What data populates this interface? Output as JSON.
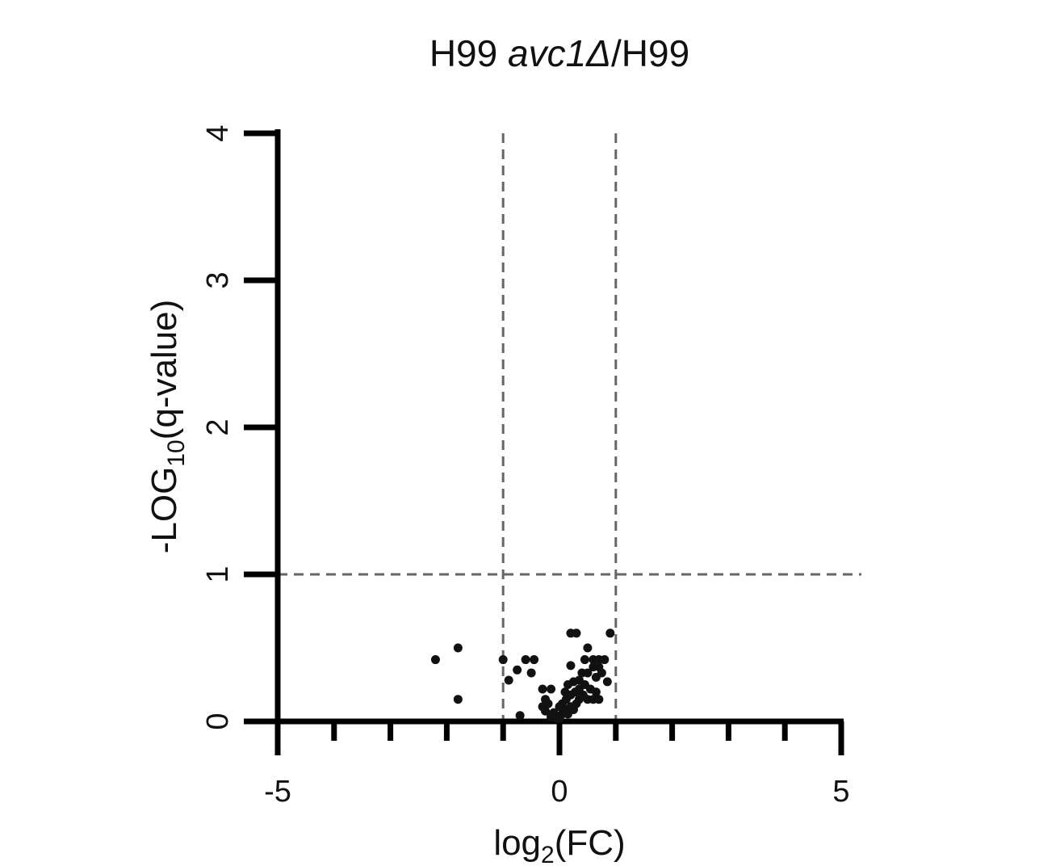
{
  "chart_data": {
    "type": "scatter",
    "title_prefix": "H99 ",
    "title_italic": "avc1Δ",
    "title_suffix": "/H99",
    "xlabel_main": "log",
    "xlabel_sub": "2",
    "xlabel_tail": "(FC)",
    "ylabel_pre": "-LOG",
    "ylabel_sub": "10",
    "ylabel_tail": "(q-value)",
    "xlim": [
      -5,
      5
    ],
    "ylim": [
      0,
      4
    ],
    "x_ticks": [
      -5,
      -4,
      -3,
      -2,
      -1,
      0,
      1,
      2,
      3,
      4,
      5
    ],
    "x_tick_labels": [
      {
        "value": -5,
        "label": "-5"
      },
      {
        "value": 0,
        "label": "0"
      },
      {
        "value": 5,
        "label": "5"
      }
    ],
    "y_ticks": [
      0,
      1,
      2,
      3,
      4
    ],
    "y_tick_labels": [
      {
        "value": 0,
        "label": "0"
      },
      {
        "value": 1,
        "label": "1"
      },
      {
        "value": 2,
        "label": "2"
      },
      {
        "value": 3,
        "label": "3"
      },
      {
        "value": 4,
        "label": "4"
      }
    ],
    "threshold_x": [
      -1,
      1
    ],
    "threshold_y": 1,
    "grid": false,
    "legend": "none",
    "point_color": "#111111",
    "threshold_color": "#666666",
    "points": [
      {
        "x": -2.2,
        "y": 0.42
      },
      {
        "x": -1.8,
        "y": 0.5
      },
      {
        "x": -1.8,
        "y": 0.15
      },
      {
        "x": -1.0,
        "y": 0.42
      },
      {
        "x": -0.9,
        "y": 0.28
      },
      {
        "x": -0.75,
        "y": 0.35
      },
      {
        "x": -0.6,
        "y": 0.42
      },
      {
        "x": -0.45,
        "y": 0.42
      },
      {
        "x": -0.5,
        "y": 0.33
      },
      {
        "x": -0.7,
        "y": 0.04
      },
      {
        "x": -0.3,
        "y": 0.22
      },
      {
        "x": -0.15,
        "y": 0.22
      },
      {
        "x": -0.25,
        "y": 0.15
      },
      {
        "x": -0.2,
        "y": 0.12
      },
      {
        "x": -0.25,
        "y": 0.07
      },
      {
        "x": -0.1,
        "y": 0.06
      },
      {
        "x": -0.15,
        "y": 0.03
      },
      {
        "x": -0.05,
        "y": 0.02
      },
      {
        "x": -0.3,
        "y": 0.1
      },
      {
        "x": 0.0,
        "y": 0.02
      },
      {
        "x": 0.05,
        "y": 0.05
      },
      {
        "x": 0.1,
        "y": 0.08
      },
      {
        "x": 0.15,
        "y": 0.05
      },
      {
        "x": 0.2,
        "y": 0.1
      },
      {
        "x": 0.25,
        "y": 0.08
      },
      {
        "x": 0.3,
        "y": 0.12
      },
      {
        "x": 0.35,
        "y": 0.15
      },
      {
        "x": 0.05,
        "y": 0.12
      },
      {
        "x": 0.12,
        "y": 0.15
      },
      {
        "x": 0.2,
        "y": 0.18
      },
      {
        "x": 0.28,
        "y": 0.2
      },
      {
        "x": 0.35,
        "y": 0.22
      },
      {
        "x": 0.42,
        "y": 0.18
      },
      {
        "x": 0.5,
        "y": 0.15
      },
      {
        "x": 0.6,
        "y": 0.15
      },
      {
        "x": 0.7,
        "y": 0.15
      },
      {
        "x": 0.15,
        "y": 0.25
      },
      {
        "x": 0.25,
        "y": 0.27
      },
      {
        "x": 0.35,
        "y": 0.28
      },
      {
        "x": 0.45,
        "y": 0.25
      },
      {
        "x": 0.55,
        "y": 0.22
      },
      {
        "x": 0.65,
        "y": 0.2
      },
      {
        "x": 0.4,
        "y": 0.33
      },
      {
        "x": 0.5,
        "y": 0.33
      },
      {
        "x": 0.65,
        "y": 0.3
      },
      {
        "x": 0.75,
        "y": 0.33
      },
      {
        "x": 0.6,
        "y": 0.37
      },
      {
        "x": 0.7,
        "y": 0.37
      },
      {
        "x": 0.45,
        "y": 0.42
      },
      {
        "x": 0.6,
        "y": 0.42
      },
      {
        "x": 0.7,
        "y": 0.42
      },
      {
        "x": 0.8,
        "y": 0.42
      },
      {
        "x": 0.85,
        "y": 0.27
      },
      {
        "x": 0.5,
        "y": 0.5
      },
      {
        "x": 0.2,
        "y": 0.6
      },
      {
        "x": 0.3,
        "y": 0.6
      },
      {
        "x": 0.9,
        "y": 0.6
      },
      {
        "x": 0.2,
        "y": 0.38
      },
      {
        "x": 0.1,
        "y": 0.2
      },
      {
        "x": 0.0,
        "y": 0.1
      }
    ]
  }
}
